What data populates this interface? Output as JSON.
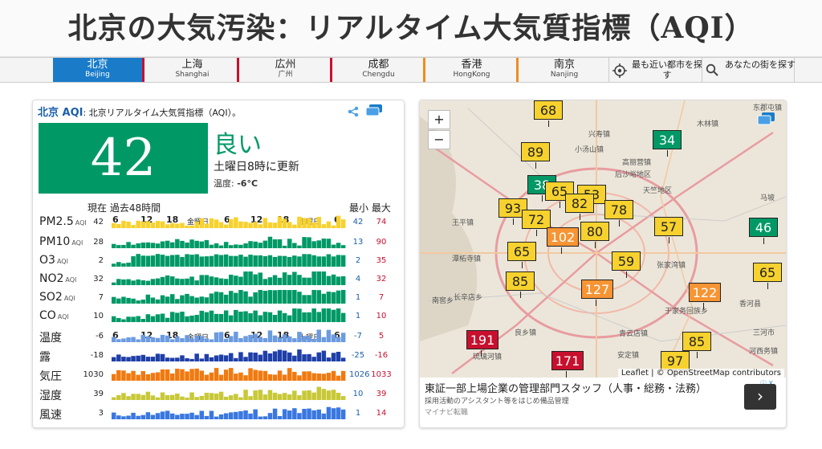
{
  "page": {
    "title": "北京の大気汚染：リアルタイム大気質指標（AQI）"
  },
  "nav": {
    "cities": [
      {
        "name": "北京",
        "roman": "Beijing"
      },
      {
        "name": "上海",
        "roman": "Shanghai"
      },
      {
        "name": "広州",
        "roman": "广州"
      },
      {
        "name": "成都",
        "roman": "Chengdu"
      },
      {
        "name": "香港",
        "roman": "HongKong"
      },
      {
        "name": "南京",
        "roman": "Nanjing"
      }
    ],
    "nearest": "最も近い都市を探す",
    "search": "あなたの街を探す",
    "colors": {
      "active": "#1a7cc8",
      "red": "#c8102e",
      "orange": "#f08c1a"
    }
  },
  "aqi": {
    "city": "北京 AQI",
    "subtitle": ": 北京リアルタイム大気質指標（AQI）。",
    "value": "42",
    "status": "良い",
    "updated": "土曜日8時に更新",
    "temp_label": "温度:",
    "temp_value": "-6°C",
    "color": "#009966"
  },
  "history": {
    "col_header": "現在 過去48時間",
    "minmax_header": "最小 最大",
    "ticks": [
      "6",
      "12",
      "18",
      "金曜日",
      "6",
      "12",
      "18",
      "土曜日",
      "6"
    ],
    "rows": [
      {
        "label": "PM2.5",
        "unit": "AQI",
        "current": "42",
        "min": "42",
        "max": "74",
        "color": "#f7d22e"
      },
      {
        "label": "PM10",
        "unit": "AQI",
        "current": "28",
        "min": "13",
        "max": "90",
        "color": "#009966"
      },
      {
        "label": "O3",
        "unit": "AQI",
        "current": "2",
        "min": "2",
        "max": "35",
        "color": "#009966"
      },
      {
        "label": "NO2",
        "unit": "AQI",
        "current": "32",
        "min": "4",
        "max": "32",
        "color": "#009966"
      },
      {
        "label": "SO2",
        "unit": "AQI",
        "current": "7",
        "min": "1",
        "max": "7",
        "color": "#009966"
      },
      {
        "label": "CO",
        "unit": "AQI",
        "current": "10",
        "min": "1",
        "max": "10",
        "color": "#009966"
      },
      {
        "label": "温度",
        "unit": "",
        "current": "-6",
        "min": "-7",
        "max": "5",
        "color": "#6b9be0"
      },
      {
        "label": "露",
        "unit": "",
        "current": "-18",
        "min": "-25",
        "max": "-16",
        "color": "#1f3fa8"
      },
      {
        "label": "気圧",
        "unit": "",
        "current": "1030",
        "min": "1026",
        "max": "1033",
        "color": "#f07a10"
      },
      {
        "label": "湿度",
        "unit": "",
        "current": "39",
        "min": "10",
        "max": "39",
        "color": "#c8c838"
      },
      {
        "label": "風速",
        "unit": "",
        "current": "3",
        "min": "1",
        "max": "14",
        "color": "#3a78e0"
      }
    ]
  },
  "map": {
    "zoom_in": "+",
    "zoom_out": "−",
    "attribution": "Leaflet | © OpenStreetMap contributors",
    "markers": [
      {
        "v": "68",
        "c": "#f7d22e"
      },
      {
        "v": "89",
        "c": "#f7d22e"
      },
      {
        "v": "34",
        "c": "#009966"
      },
      {
        "v": "38",
        "c": "#009966"
      },
      {
        "v": "65",
        "c": "#f7d22e"
      },
      {
        "v": "53",
        "c": "#f7d22e"
      },
      {
        "v": "93",
        "c": "#f7d22e"
      },
      {
        "v": "72",
        "c": "#f7d22e"
      },
      {
        "v": "82",
        "c": "#f7d22e"
      },
      {
        "v": "78",
        "c": "#f7d22e"
      },
      {
        "v": "46",
        "c": "#009966"
      },
      {
        "v": "102",
        "c": "#f79433"
      },
      {
        "v": "80",
        "c": "#f7d22e"
      },
      {
        "v": "57",
        "c": "#f7d22e"
      },
      {
        "v": "65",
        "c": "#f7d22e"
      },
      {
        "v": "59",
        "c": "#f7d22e"
      },
      {
        "v": "85",
        "c": "#f7d22e"
      },
      {
        "v": "127",
        "c": "#f79433"
      },
      {
        "v": "122",
        "c": "#f79433"
      },
      {
        "v": "65",
        "c": "#f7d22e"
      },
      {
        "v": "191",
        "c": "#c8102e"
      },
      {
        "v": "85",
        "c": "#f7d22e"
      },
      {
        "v": "97",
        "c": "#f7d22e"
      },
      {
        "v": "171",
        "c": "#c8102e"
      }
    ],
    "places": [
      "东郡屯镇",
      "兴寿镇",
      "小汤山镇",
      "木林镇",
      "高丽营镇",
      "后沙峪地区",
      "天竺地区",
      "马坡",
      "王平镇",
      "潭柘寺镇",
      "张家湾镇",
      "长辛店乡",
      "南窖乡",
      "于家务回族乡",
      "安定镇",
      "青云店镇",
      "良乡镇",
      "琉璃河镇",
      "河西务镇",
      "香河县",
      "三河市"
    ]
  },
  "ad": {
    "title": "東証一部上場企業の管理部門スタッフ（人事・総務・法務）",
    "sub": "採用活動のアシスタント等をはじめ備品管理",
    "source": "マイナビ転職",
    "adchoice": "ⓘ X",
    "cta": "›"
  }
}
